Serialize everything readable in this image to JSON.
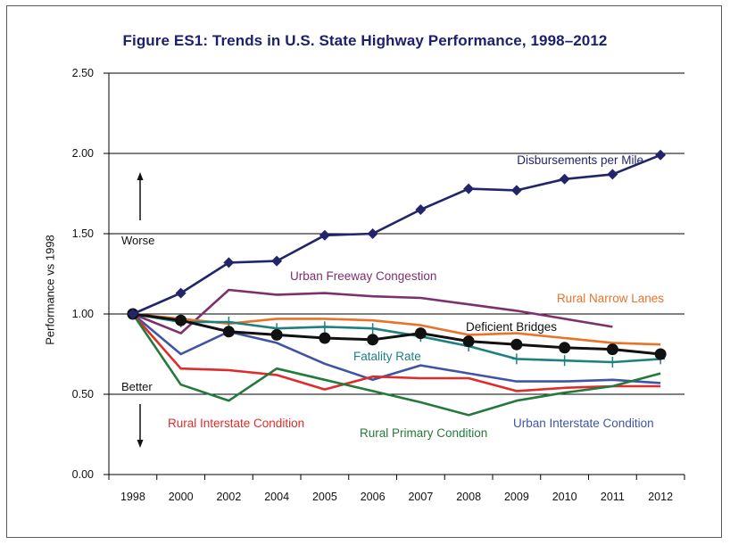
{
  "chart_data": {
    "type": "line",
    "title": "Figure ES1: Trends in U.S. State Highway Performance, 1998–2012",
    "ylabel": "Performance vs 1998",
    "xlabel": "",
    "categories": [
      "1998",
      "2000",
      "2002",
      "2004",
      "2005",
      "2006",
      "2007",
      "2008",
      "2009",
      "2010",
      "2011",
      "2012"
    ],
    "ylim": [
      0,
      2.5
    ],
    "yticks": [
      "0.00",
      "0.50",
      "1.00",
      "1.50",
      "2.00",
      "2.50"
    ],
    "grid": true,
    "annotations": {
      "worse": "Worse",
      "better": "Better"
    },
    "series": [
      {
        "name": "Disbursements per Mile",
        "color": "#23256b",
        "marker": "diamond",
        "label_anchor": "end",
        "values": [
          1.0,
          1.13,
          1.32,
          1.33,
          1.49,
          1.5,
          1.65,
          1.78,
          1.77,
          1.84,
          1.87,
          1.99
        ]
      },
      {
        "name": "Urban Freeway Congestion",
        "color": "#7d2f6e",
        "marker": "none",
        "label_anchor": "start",
        "values": [
          1.0,
          0.88,
          1.15,
          1.12,
          1.13,
          1.11,
          1.1,
          1.06,
          1.02,
          0.97,
          0.92,
          null
        ]
      },
      {
        "name": "Rural Narrow Lanes",
        "color": "#e8732b",
        "marker": "none",
        "label_anchor": "end",
        "values": [
          1.0,
          0.97,
          0.94,
          0.97,
          0.97,
          0.96,
          0.93,
          0.87,
          0.88,
          0.85,
          0.82,
          0.81
        ]
      },
      {
        "name": "Deficient Bridges",
        "color": "#111111",
        "marker": "circle",
        "label_anchor": "start",
        "values": [
          1.0,
          0.96,
          0.89,
          0.87,
          0.85,
          0.84,
          0.88,
          0.83,
          0.81,
          0.79,
          0.78,
          0.75
        ]
      },
      {
        "name": "Fatality Rate",
        "color": "#1f8080",
        "marker": "plus",
        "label_anchor": "start",
        "values": [
          1.0,
          0.95,
          0.95,
          0.91,
          0.92,
          0.91,
          0.86,
          0.8,
          0.72,
          0.71,
          0.7,
          0.72
        ]
      },
      {
        "name": "Urban Interstate Condition",
        "color": "#3f55a3",
        "marker": "none",
        "label_anchor": "start",
        "values": [
          1.0,
          0.75,
          0.89,
          0.82,
          0.69,
          0.59,
          0.68,
          0.63,
          0.58,
          0.58,
          0.59,
          0.57
        ]
      },
      {
        "name": "Rural Interstate Condition",
        "color": "#e02b2b",
        "marker": "none",
        "label_anchor": "start",
        "values": [
          1.0,
          0.66,
          0.65,
          0.62,
          0.53,
          0.61,
          0.6,
          0.6,
          0.52,
          0.54,
          0.55,
          0.55
        ]
      },
      {
        "name": "Rural Primary Condition",
        "color": "#247a3a",
        "marker": "none",
        "label_anchor": "start",
        "values": [
          1.0,
          0.56,
          0.46,
          0.66,
          0.59,
          0.52,
          0.45,
          0.37,
          0.46,
          0.51,
          0.55,
          0.63
        ]
      }
    ]
  }
}
